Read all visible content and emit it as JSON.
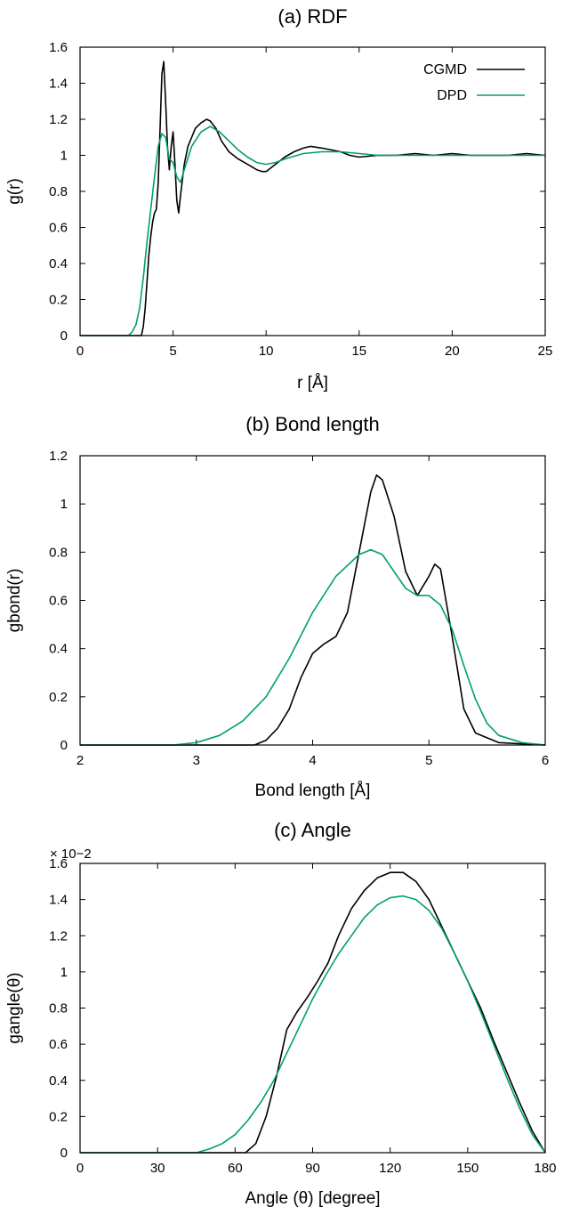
{
  "colors": {
    "cgmd": "#000000",
    "dpd": "#009e73"
  },
  "chart_data": [
    {
      "type": "line",
      "title": "(a) RDF",
      "xlabel": "r [Å]",
      "ylabel": "g(r)",
      "xlim": [
        0,
        25
      ],
      "ylim": [
        0,
        1.6
      ],
      "xticks": [
        "0",
        "5",
        "10",
        "15",
        "20",
        "25"
      ],
      "yticks": [
        "0",
        "0.2",
        "0.4",
        "0.6",
        "0.8",
        "1",
        "1.2",
        "1.4",
        "1.6"
      ],
      "legend": {
        "position": "top-right",
        "entries": [
          "CGMD",
          "DPD"
        ]
      },
      "series": [
        {
          "name": "CGMD",
          "color": "#000000",
          "x": [
            0,
            3.3,
            3.4,
            3.5,
            3.6,
            3.7,
            3.8,
            3.9,
            4.0,
            4.1,
            4.2,
            4.3,
            4.4,
            4.5,
            4.6,
            4.7,
            4.8,
            4.9,
            5.0,
            5.1,
            5.2,
            5.3,
            5.4,
            5.6,
            5.8,
            6.0,
            6.2,
            6.5,
            6.8,
            7.0,
            7.3,
            7.6,
            8.0,
            8.5,
            9.0,
            9.5,
            9.8,
            10.0,
            10.5,
            11.0,
            11.5,
            12.0,
            12.4,
            13.0,
            13.5,
            14.0,
            14.5,
            15.0,
            16.0,
            17.0,
            18.0,
            19.0,
            20.0,
            21.0,
            22.0,
            23.0,
            24.0,
            25.0
          ],
          "y": [
            0,
            0,
            0.05,
            0.15,
            0.3,
            0.45,
            0.55,
            0.63,
            0.68,
            0.7,
            0.85,
            1.15,
            1.45,
            1.52,
            1.3,
            1.05,
            0.92,
            1.05,
            1.13,
            0.95,
            0.75,
            0.68,
            0.78,
            0.95,
            1.05,
            1.1,
            1.15,
            1.18,
            1.2,
            1.19,
            1.15,
            1.08,
            1.02,
            0.98,
            0.95,
            0.92,
            0.91,
            0.91,
            0.95,
            0.99,
            1.02,
            1.04,
            1.05,
            1.04,
            1.03,
            1.02,
            1.0,
            0.99,
            1.0,
            1.0,
            1.01,
            1.0,
            1.01,
            1.0,
            1.0,
            1.0,
            1.01,
            1.0
          ]
        },
        {
          "name": "DPD",
          "color": "#009e73",
          "x": [
            0,
            2.6,
            2.8,
            3.0,
            3.2,
            3.4,
            3.6,
            3.8,
            4.0,
            4.2,
            4.4,
            4.6,
            4.8,
            5.0,
            5.2,
            5.4,
            5.6,
            6.0,
            6.5,
            7.0,
            7.5,
            8.0,
            8.5,
            9.0,
            9.5,
            10.0,
            10.5,
            11.0,
            12.0,
            13.0,
            14.0,
            15.0,
            16.0,
            17.0,
            18.0,
            20.0,
            22.0,
            25.0
          ],
          "y": [
            0,
            0,
            0.02,
            0.06,
            0.15,
            0.32,
            0.52,
            0.7,
            0.88,
            1.05,
            1.12,
            1.1,
            0.98,
            0.96,
            0.88,
            0.85,
            0.92,
            1.05,
            1.13,
            1.16,
            1.13,
            1.08,
            1.03,
            0.99,
            0.96,
            0.95,
            0.96,
            0.98,
            1.01,
            1.02,
            1.02,
            1.01,
            1.0,
            1.0,
            1.0,
            1.0,
            1.0,
            1.0
          ]
        }
      ]
    },
    {
      "type": "line",
      "title": "(b) Bond length",
      "xlabel": "Bond length [Å]",
      "ylabel": "gbond(r)",
      "xlim": [
        2,
        6
      ],
      "ylim": [
        0,
        1.2
      ],
      "xticks": [
        "2",
        "3",
        "4",
        "5",
        "6"
      ],
      "yticks": [
        "0",
        "0.2",
        "0.4",
        "0.6",
        "0.8",
        "1",
        "1.2"
      ],
      "series": [
        {
          "name": "CGMD",
          "color": "#000000",
          "x": [
            2.0,
            3.5,
            3.6,
            3.7,
            3.8,
            3.9,
            4.0,
            4.1,
            4.2,
            4.3,
            4.4,
            4.5,
            4.55,
            4.6,
            4.7,
            4.8,
            4.9,
            5.0,
            5.05,
            5.1,
            5.2,
            5.3,
            5.4,
            5.5,
            5.6,
            6.0
          ],
          "y": [
            0,
            0,
            0.02,
            0.07,
            0.15,
            0.28,
            0.38,
            0.42,
            0.45,
            0.55,
            0.8,
            1.05,
            1.12,
            1.1,
            0.95,
            0.72,
            0.62,
            0.7,
            0.75,
            0.73,
            0.45,
            0.15,
            0.05,
            0.03,
            0.01,
            0
          ]
        },
        {
          "name": "DPD",
          "color": "#009e73",
          "x": [
            2.0,
            2.8,
            3.0,
            3.2,
            3.4,
            3.6,
            3.8,
            4.0,
            4.2,
            4.4,
            4.5,
            4.6,
            4.7,
            4.8,
            4.9,
            5.0,
            5.1,
            5.2,
            5.3,
            5.4,
            5.5,
            5.6,
            5.8,
            6.0
          ],
          "y": [
            0,
            0,
            0.01,
            0.04,
            0.1,
            0.2,
            0.36,
            0.55,
            0.7,
            0.79,
            0.81,
            0.79,
            0.72,
            0.65,
            0.62,
            0.62,
            0.58,
            0.48,
            0.33,
            0.19,
            0.09,
            0.04,
            0.01,
            0
          ]
        }
      ]
    },
    {
      "type": "line",
      "title": "(c) Angle",
      "xlabel": "Angle (θ) [degree]",
      "ylabel": "gangle(θ)",
      "xlim": [
        0,
        180
      ],
      "ylim": [
        0,
        1.6
      ],
      "y_multiplier": "× 10−2",
      "xticks": [
        "0",
        "30",
        "60",
        "90",
        "120",
        "150",
        "180"
      ],
      "yticks": [
        "0",
        "0.2",
        "0.4",
        "0.6",
        "0.8",
        "1",
        "1.2",
        "1.4",
        "1.6"
      ],
      "series": [
        {
          "name": "CGMD",
          "color": "#000000",
          "x": [
            0,
            64,
            68,
            72,
            76,
            80,
            84,
            88,
            92,
            96,
            100,
            105,
            110,
            115,
            120,
            125,
            130,
            135,
            140,
            145,
            150,
            155,
            160,
            165,
            170,
            175,
            180
          ],
          "y": [
            0,
            0,
            0.05,
            0.2,
            0.42,
            0.68,
            0.78,
            0.86,
            0.95,
            1.05,
            1.2,
            1.35,
            1.45,
            1.52,
            1.55,
            1.55,
            1.5,
            1.4,
            1.25,
            1.1,
            0.95,
            0.8,
            0.62,
            0.45,
            0.28,
            0.12,
            0
          ]
        },
        {
          "name": "DPD",
          "color": "#009e73",
          "x": [
            0,
            45,
            50,
            55,
            60,
            65,
            70,
            75,
            80,
            85,
            90,
            95,
            100,
            105,
            110,
            115,
            120,
            125,
            130,
            135,
            140,
            145,
            150,
            155,
            160,
            165,
            170,
            175,
            180
          ],
          "y": [
            0,
            0,
            0.02,
            0.05,
            0.1,
            0.18,
            0.28,
            0.4,
            0.55,
            0.7,
            0.85,
            0.98,
            1.1,
            1.2,
            1.3,
            1.37,
            1.41,
            1.42,
            1.4,
            1.34,
            1.24,
            1.1,
            0.95,
            0.78,
            0.6,
            0.42,
            0.25,
            0.1,
            0
          ]
        }
      ]
    }
  ]
}
